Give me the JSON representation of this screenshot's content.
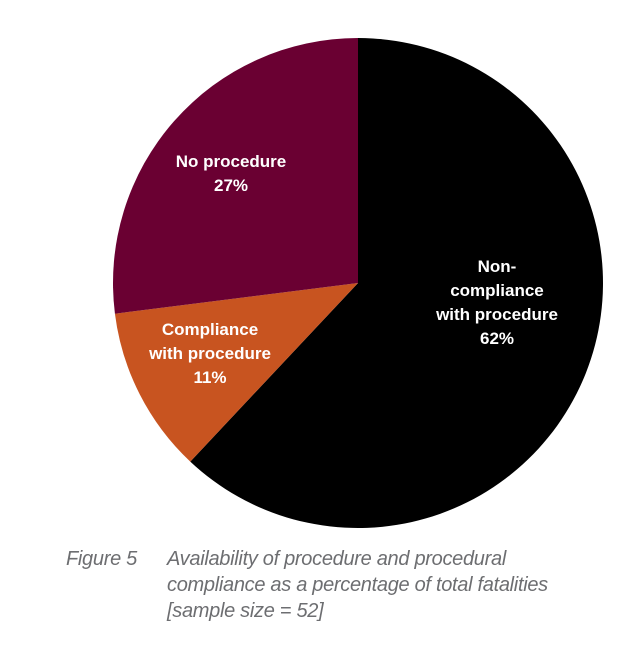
{
  "chart_data": {
    "type": "pie",
    "title": "",
    "slices": [
      {
        "label_lines": [
          "Non-",
          "compliance",
          "with procedure"
        ],
        "value": 62,
        "value_label": "62%",
        "color": "#000000"
      },
      {
        "label_lines": [
          "Compliance",
          "with procedure"
        ],
        "value": 11,
        "value_label": "11%",
        "color": "#c85420"
      },
      {
        "label_lines": [
          "No procedure"
        ],
        "value": 27,
        "value_label": "27%",
        "color": "#6a0032"
      }
    ],
    "start_angle": "top",
    "direction": "clockwise"
  },
  "caption": {
    "number": "Figure 5",
    "lines": [
      "Availability of procedure and procedural",
      "compliance as a percentage of total fatalities",
      "[sample size = 52]"
    ]
  }
}
